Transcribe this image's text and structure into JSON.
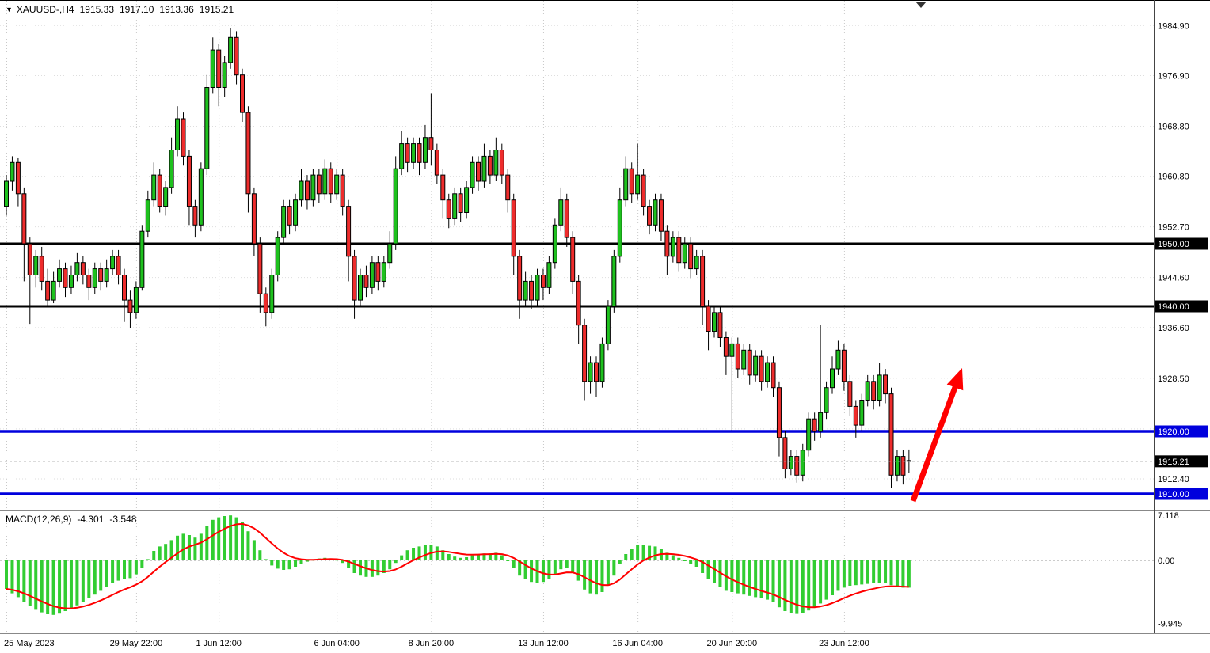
{
  "window": {
    "one_click_icon": "▼",
    "title": {
      "symbol_period": "XAUUSD-,H4",
      "open": "1915.33",
      "high": "1917.10",
      "low": "1913.36",
      "close": "1915.21"
    }
  },
  "colors": {
    "up": "#1EC11E",
    "down": "#EE2C2C",
    "candle_outline": "#000000",
    "wick": "#000000",
    "macd_hist": "#32CD32",
    "macd_signal": "#FF0000",
    "grid_v": "#C8C8C8",
    "grid_h": "#DEDEDE",
    "black_level": "#000000",
    "blue_level": "#0000DD",
    "arrow": "#FF0000",
    "badge_text": "#FFFFFF",
    "axis_text": "#000000"
  },
  "chart_data": {
    "type": "candlestick",
    "title": "XAUUSD-,H4",
    "symbol": "XAUUSD-",
    "timeframe": "H4",
    "grid": "dotted",
    "ylim": [
      1908,
      1987
    ],
    "price_ticks": [
      {
        "value": 1984.9,
        "label": "1984.90"
      },
      {
        "value": 1976.9,
        "label": "1976.90"
      },
      {
        "value": 1968.8,
        "label": "1968.80"
      },
      {
        "value": 1960.8,
        "label": "1960.80"
      },
      {
        "value": 1952.7,
        "label": "1952.70"
      },
      {
        "value": 1944.6,
        "label": "1944.60"
      },
      {
        "value": 1936.6,
        "label": "1936.60"
      },
      {
        "value": 1928.5,
        "label": "1928.50"
      },
      {
        "value": 1920.4,
        "label": ""
      },
      {
        "value": 1912.4,
        "label": "1912.40"
      }
    ],
    "x_ticks": [
      {
        "i": 0,
        "label": "25 May 2023"
      },
      {
        "i": 22,
        "label": "29 May 22:00"
      },
      {
        "i": 36,
        "label": "1 Jun 12:00"
      },
      {
        "i": 56,
        "label": "6 Jun 04:00"
      },
      {
        "i": 72,
        "label": "8 Jun 20:00"
      },
      {
        "i": 91,
        "label": "13 Jun 12:00"
      },
      {
        "i": 107,
        "label": "16 Jun 04:00"
      },
      {
        "i": 123,
        "label": "20 Jun 20:00"
      },
      {
        "i": 142,
        "label": "23 Jun 12:00"
      }
    ],
    "hlines": [
      {
        "price": 1950.0,
        "label": "1950.00",
        "color": "#000000",
        "badge_bg": "#000000",
        "width": 3
      },
      {
        "price": 1940.0,
        "label": "1940.00",
        "color": "#000000",
        "badge_bg": "#000000",
        "width": 3
      },
      {
        "price": 1920.0,
        "label": "1920.00",
        "color": "#0000DD",
        "badge_bg": "#0000DD",
        "width": 3.5
      },
      {
        "price": 1910.0,
        "label": "1910.00",
        "color": "#0000DD",
        "badge_bg": "#0000DD",
        "width": 3.5
      }
    ],
    "current_price": {
      "value": 1915.21,
      "label": "1915.21",
      "badge_bg": "#000000"
    },
    "candles": [
      [
        1956,
        1961,
        1954.5,
        1960
      ],
      [
        1960,
        1964,
        1958.5,
        1963
      ],
      [
        1963,
        1963.8,
        1956,
        1958
      ],
      [
        1958,
        1959,
        1944,
        1950
      ],
      [
        1950,
        1951,
        1937.2,
        1945
      ],
      [
        1945,
        1949,
        1943,
        1948
      ],
      [
        1948,
        1949.5,
        1942.5,
        1944
      ],
      [
        1944,
        1946,
        1940,
        1941
      ],
      [
        1941,
        1945.5,
        1940.5,
        1944
      ],
      [
        1944,
        1947.5,
        1943,
        1946
      ],
      [
        1946,
        1947,
        1941.5,
        1943
      ],
      [
        1943,
        1946.5,
        1942,
        1945
      ],
      [
        1945,
        1948.5,
        1944,
        1947
      ],
      [
        1947,
        1948,
        1943.5,
        1945
      ],
      [
        1945,
        1946,
        1941,
        1943
      ],
      [
        1943,
        1947,
        1942,
        1946
      ],
      [
        1946,
        1947,
        1942.5,
        1944
      ],
      [
        1944,
        1947.5,
        1943,
        1946
      ],
      [
        1946,
        1949,
        1945,
        1948
      ],
      [
        1948,
        1949,
        1943.5,
        1945
      ],
      [
        1945,
        1946,
        1937.5,
        1941
      ],
      [
        1941,
        1942.5,
        1936.5,
        1939
      ],
      [
        1939,
        1944,
        1938,
        1943
      ],
      [
        1943,
        1953,
        1942.5,
        1952
      ],
      [
        1952,
        1958.5,
        1951,
        1957
      ],
      [
        1957,
        1963,
        1956,
        1961
      ],
      [
        1961,
        1962,
        1955,
        1956
      ],
      [
        1956,
        1960,
        1954.5,
        1959
      ],
      [
        1959,
        1967,
        1958,
        1965
      ],
      [
        1965,
        1972,
        1964,
        1970
      ],
      [
        1970,
        1971,
        1962.5,
        1964
      ],
      [
        1964,
        1965,
        1953,
        1956
      ],
      [
        1956,
        1957,
        1951,
        1953
      ],
      [
        1953,
        1963,
        1952,
        1962
      ],
      [
        1962,
        1977,
        1961,
        1975
      ],
      [
        1975,
        1983,
        1974,
        1981
      ],
      [
        1981,
        1982,
        1972,
        1975
      ],
      [
        1975,
        1980,
        1973.5,
        1979
      ],
      [
        1979,
        1984.5,
        1978,
        1983
      ],
      [
        1983,
        1984,
        1975.5,
        1977
      ],
      [
        1977,
        1978,
        1969.5,
        1971
      ],
      [
        1971,
        1972,
        1955,
        1958
      ],
      [
        1958,
        1959,
        1948,
        1950
      ],
      [
        1950,
        1951,
        1939,
        1942
      ],
      [
        1942,
        1943,
        1936.8,
        1939
      ],
      [
        1939,
        1946,
        1938,
        1945
      ],
      [
        1945,
        1952,
        1944,
        1951
      ],
      [
        1951,
        1957,
        1950,
        1956
      ],
      [
        1956,
        1957,
        1951.5,
        1953
      ],
      [
        1953,
        1958,
        1952,
        1957
      ],
      [
        1957,
        1962,
        1956,
        1960
      ],
      [
        1960,
        1961,
        1955.5,
        1957
      ],
      [
        1957,
        1962,
        1956,
        1961
      ],
      [
        1961,
        1962,
        1956.5,
        1958
      ],
      [
        1958,
        1963.5,
        1957,
        1962
      ],
      [
        1962,
        1963,
        1956.5,
        1958
      ],
      [
        1958,
        1962,
        1957,
        1961
      ],
      [
        1961,
        1962,
        1954.5,
        1956
      ],
      [
        1956,
        1957,
        1944,
        1948
      ],
      [
        1948,
        1949,
        1938,
        1941
      ],
      [
        1941,
        1946,
        1940,
        1945
      ],
      [
        1945,
        1946.5,
        1941.5,
        1943
      ],
      [
        1943,
        1948,
        1942,
        1947
      ],
      [
        1947,
        1948,
        1942.5,
        1944
      ],
      [
        1944,
        1948,
        1943,
        1947
      ],
      [
        1947,
        1952,
        1946,
        1950
      ],
      [
        1950,
        1964,
        1949,
        1962
      ],
      [
        1962,
        1968,
        1961,
        1966
      ],
      [
        1966,
        1967,
        1961.5,
        1963
      ],
      [
        1963,
        1967,
        1962,
        1966
      ],
      [
        1966,
        1967,
        1961,
        1963
      ],
      [
        1963,
        1969,
        1962,
        1967
      ],
      [
        1967,
        1974,
        1962.5,
        1965
      ],
      [
        1965,
        1966,
        1959.5,
        1961
      ],
      [
        1961,
        1962,
        1954,
        1957
      ],
      [
        1957,
        1958,
        1952.5,
        1954
      ],
      [
        1954,
        1959,
        1953,
        1958
      ],
      [
        1958,
        1959,
        1953.5,
        1955
      ],
      [
        1955,
        1960,
        1954,
        1959
      ],
      [
        1959,
        1964,
        1958,
        1963
      ],
      [
        1963,
        1964,
        1958.5,
        1960
      ],
      [
        1960,
        1966,
        1959,
        1964
      ],
      [
        1964,
        1965,
        1959.5,
        1961
      ],
      [
        1961,
        1967,
        1960,
        1965
      ],
      [
        1965,
        1966,
        1959.5,
        1961
      ],
      [
        1961,
        1962,
        1955,
        1957
      ],
      [
        1957,
        1958,
        1945,
        1948
      ],
      [
        1948,
        1949,
        1938,
        1941
      ],
      [
        1941,
        1945.5,
        1940,
        1944
      ],
      [
        1944,
        1945,
        1939.5,
        1941
      ],
      [
        1941,
        1946,
        1940,
        1945
      ],
      [
        1945,
        1946,
        1941,
        1943
      ],
      [
        1943,
        1948,
        1942,
        1947
      ],
      [
        1947,
        1954,
        1946,
        1953
      ],
      [
        1953,
        1959,
        1952,
        1957
      ],
      [
        1957,
        1958,
        1949.5,
        1951
      ],
      [
        1951,
        1952,
        1942,
        1944
      ],
      [
        1944,
        1945,
        1934,
        1937
      ],
      [
        1937,
        1938,
        1925,
        1928
      ],
      [
        1928,
        1932,
        1926,
        1931
      ],
      [
        1931,
        1932,
        1925.5,
        1928
      ],
      [
        1928,
        1935,
        1927,
        1934
      ],
      [
        1934,
        1941,
        1933,
        1940
      ],
      [
        1940,
        1949,
        1939,
        1948
      ],
      [
        1948,
        1959,
        1947,
        1957
      ],
      [
        1957,
        1964,
        1956,
        1962
      ],
      [
        1962,
        1963,
        1956.5,
        1958
      ],
      [
        1958,
        1966,
        1957,
        1961
      ],
      [
        1961,
        1962,
        1954.5,
        1956
      ],
      [
        1956,
        1957,
        1951.5,
        1953
      ],
      [
        1953,
        1958,
        1952,
        1957
      ],
      [
        1957,
        1958,
        1950.5,
        1952
      ],
      [
        1952,
        1953,
        1945,
        1948
      ],
      [
        1948,
        1952,
        1947,
        1951
      ],
      [
        1951,
        1952,
        1945.5,
        1947
      ],
      [
        1947,
        1951,
        1946,
        1950
      ],
      [
        1950,
        1951,
        1944.5,
        1946
      ],
      [
        1946,
        1949,
        1945,
        1948
      ],
      [
        1948,
        1949,
        1937,
        1940
      ],
      [
        1940,
        1941,
        1933,
        1936
      ],
      [
        1936,
        1940,
        1935,
        1939
      ],
      [
        1939,
        1940,
        1933.5,
        1935
      ],
      [
        1935,
        1936,
        1929,
        1932
      ],
      [
        1932,
        1935,
        1920,
        1934
      ],
      [
        1934,
        1935,
        1928.5,
        1930
      ],
      [
        1930,
        1934,
        1929,
        1933
      ],
      [
        1933,
        1934,
        1927.5,
        1929
      ],
      [
        1929,
        1933,
        1928,
        1932
      ],
      [
        1932,
        1933,
        1926.5,
        1928
      ],
      [
        1928,
        1932,
        1927,
        1931
      ],
      [
        1931,
        1932,
        1925.5,
        1927
      ],
      [
        1927,
        1928,
        1916,
        1919
      ],
      [
        1919,
        1920,
        1912.5,
        1914
      ],
      [
        1914,
        1917,
        1913,
        1916
      ],
      [
        1916,
        1917,
        1911.8,
        1913
      ],
      [
        1913,
        1918,
        1912,
        1917
      ],
      [
        1917,
        1923,
        1916,
        1922
      ],
      [
        1922,
        1923,
        1918.5,
        1920
      ],
      [
        1920,
        1937,
        1919,
        1923
      ],
      [
        1923,
        1928,
        1922,
        1927
      ],
      [
        1927,
        1932,
        1926,
        1930
      ],
      [
        1930,
        1934.5,
        1929,
        1933
      ],
      [
        1933,
        1934,
        1926.5,
        1928
      ],
      [
        1928,
        1929,
        1922.5,
        1924
      ],
      [
        1924,
        1925,
        1919,
        1921
      ],
      [
        1921,
        1926,
        1920,
        1925
      ],
      [
        1925,
        1929,
        1924,
        1928
      ],
      [
        1928,
        1929,
        1923.5,
        1925
      ],
      [
        1925,
        1931,
        1924,
        1929
      ],
      [
        1929,
        1930,
        1924.5,
        1926
      ],
      [
        1926,
        1927,
        1911,
        1913
      ],
      [
        1913,
        1917,
        1912,
        1916
      ],
      [
        1916,
        1917,
        1911.5,
        1913
      ],
      [
        1915.33,
        1917.1,
        1913.36,
        1915.21
      ]
    ],
    "macd": {
      "name": "MACD(12,26,9)",
      "macd_value": "-4.301",
      "signal_value": "-3.548",
      "ylim": [
        -9.945,
        7.118
      ],
      "scale": [
        {
          "value": 7.118,
          "label": "7.118"
        },
        {
          "value": 0,
          "label": "0.00"
        },
        {
          "value": -9.945,
          "label": "-9.945"
        }
      ],
      "bars": [
        -4.5,
        -5.2,
        -5.8,
        -6.5,
        -7.2,
        -7.8,
        -8.2,
        -8.5,
        -8.6,
        -8.4,
        -8.0,
        -7.6,
        -7.1,
        -6.5,
        -6.0,
        -5.4,
        -4.8,
        -4.2,
        -3.6,
        -3.2,
        -3.0,
        -2.8,
        -2.2,
        -1.2,
        0.2,
        1.5,
        2.2,
        2.6,
        3.2,
        3.9,
        4.2,
        4.0,
        3.6,
        4.2,
        5.4,
        6.4,
        6.8,
        7.0,
        7.1,
        6.8,
        6.0,
        4.6,
        3.2,
        1.6,
        0.2,
        -0.8,
        -1.3,
        -1.5,
        -1.4,
        -1.0,
        -0.5,
        -0.2,
        0.1,
        0.3,
        0.4,
        0.3,
        0.1,
        -0.4,
        -1.2,
        -2.0,
        -2.4,
        -2.6,
        -2.6,
        -2.4,
        -2.0,
        -1.4,
        -0.4,
        0.8,
        1.6,
        2.0,
        2.2,
        2.4,
        2.5,
        2.2,
        1.6,
        1.0,
        0.6,
        0.4,
        0.5,
        0.8,
        1.0,
        1.1,
        1.1,
        1.2,
        0.8,
        0.0,
        -1.2,
        -2.4,
        -3.0,
        -3.4,
        -3.5,
        -3.4,
        -3.0,
        -2.2,
        -1.4,
        -1.2,
        -2.0,
        -3.2,
        -4.6,
        -5.2,
        -5.4,
        -5.0,
        -4.0,
        -2.4,
        -0.6,
        1.0,
        1.8,
        2.4,
        2.5,
        2.3,
        2.2,
        1.8,
        1.2,
        0.8,
        0.4,
        0.0,
        -0.5,
        -1.0,
        -2.0,
        -3.0,
        -3.6,
        -4.2,
        -4.8,
        -5.0,
        -5.2,
        -5.4,
        -5.6,
        -5.8,
        -6.0,
        -6.2,
        -6.6,
        -7.4,
        -8.0,
        -8.3,
        -8.45,
        -8.3,
        -7.9,
        -7.4,
        -6.8,
        -6.2,
        -5.5,
        -4.8,
        -4.3,
        -4.0,
        -3.9,
        -3.8,
        -3.7,
        -3.6,
        -3.5,
        -3.5,
        -3.9,
        -4.2,
        -4.3,
        -4.301
      ]
    },
    "arrow": {
      "from": [
        1153,
        633
      ],
      "to": [
        1215,
        465
      ],
      "color": "#FF0000"
    }
  }
}
